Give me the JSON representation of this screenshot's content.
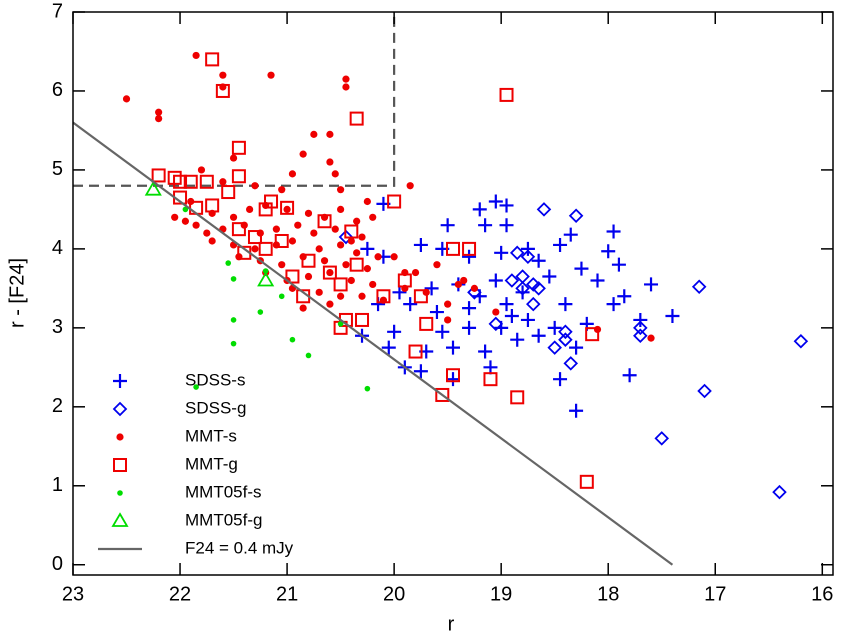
{
  "chart_data": {
    "type": "scatter",
    "xlabel": "r",
    "ylabel": "r - [F24]",
    "xlim": [
      23,
      15.9
    ],
    "ylim": [
      -0.13,
      7
    ],
    "xticks": [
      23,
      22,
      21,
      20,
      19,
      18,
      17,
      16
    ],
    "yticks": [
      0,
      1,
      2,
      3,
      4,
      5,
      6,
      7
    ],
    "legend": "lower left",
    "series": [
      {
        "name": "SDSS-s",
        "color": "#0000ee",
        "marker": "plus",
        "x": [
          20.1,
          19.2,
          19.05,
          18.95,
          19.15,
          19.5,
          18.95,
          18.35,
          17.95,
          18.0,
          18.45,
          18.75,
          19.75,
          19.55,
          19.3,
          19.0,
          18.65,
          18.25,
          17.9,
          17.6,
          17.85,
          17.4,
          17.95,
          18.1,
          18.55,
          19.05,
          19.4,
          19.65,
          19.95,
          20.15,
          19.85,
          19.6,
          19.3,
          18.95,
          18.9,
          18.75,
          18.5,
          18.2,
          17.7,
          18.65,
          19.0,
          19.3,
          19.55,
          20.0,
          20.3,
          20.05,
          19.7,
          19.45,
          19.15,
          18.85,
          19.1,
          19.75,
          19.9,
          19.45,
          18.45,
          17.8,
          18.3,
          20.25,
          20.1,
          18.8,
          19.2,
          18.4,
          18.3
        ],
        "values": [
          4.57,
          4.5,
          4.6,
          4.55,
          4.3,
          4.3,
          4.3,
          4.18,
          4.22,
          3.97,
          4.05,
          4.0,
          4.05,
          4.0,
          3.9,
          3.95,
          3.85,
          3.75,
          3.8,
          3.55,
          3.4,
          3.15,
          3.3,
          3.6,
          3.65,
          3.6,
          3.55,
          3.5,
          3.45,
          3.3,
          3.3,
          3.2,
          3.25,
          3.3,
          3.15,
          3.1,
          3.0,
          3.05,
          3.1,
          2.9,
          3.0,
          3.0,
          2.95,
          2.95,
          2.9,
          2.75,
          2.7,
          2.75,
          2.7,
          2.85,
          2.5,
          2.45,
          2.5,
          2.35,
          2.35,
          2.4,
          1.95,
          4.0,
          3.9,
          3.45,
          3.4,
          3.3,
          2.75
        ]
      },
      {
        "name": "SDSS-g",
        "color": "#0000ee",
        "marker": "diamond",
        "x": [
          18.6,
          18.3,
          17.15,
          16.2,
          17.1,
          17.5,
          16.4,
          17.7,
          17.7,
          18.4,
          18.5,
          18.35,
          18.4,
          18.7,
          18.75,
          18.8,
          18.65,
          18.9,
          18.8,
          19.25,
          19.05,
          20.45,
          18.85,
          18.7
        ],
        "values": [
          4.5,
          4.42,
          3.52,
          2.83,
          2.2,
          1.6,
          0.92,
          3.0,
          2.9,
          2.95,
          2.75,
          2.55,
          2.85,
          3.55,
          3.9,
          3.65,
          3.5,
          3.6,
          3.5,
          3.45,
          3.05,
          4.15,
          3.95,
          3.3
        ]
      },
      {
        "name": "MMT-s",
        "color": "#ee0000",
        "marker": "dot",
        "x": [
          22.5,
          22.2,
          22.2,
          21.85,
          21.6,
          21.6,
          21.15,
          20.45,
          20.45,
          20.6,
          20.75,
          20.85,
          21.5,
          20.6,
          21.8,
          20.55,
          20.95,
          20.5,
          19.85,
          20.25,
          21.05,
          21.6,
          21.3,
          21.9,
          21.7,
          21.5,
          21.35,
          21.2,
          21.0,
          20.8,
          20.65,
          20.5,
          20.35,
          20.2,
          21.85,
          21.6,
          21.4,
          21.25,
          21.1,
          20.9,
          20.75,
          20.55,
          20.4,
          20.3,
          21.7,
          21.5,
          21.3,
          21.1,
          20.95,
          20.7,
          20.5,
          20.35,
          20.15,
          21.45,
          21.25,
          21.05,
          20.85,
          20.65,
          20.45,
          20.25,
          21.2,
          21.0,
          20.8,
          20.6,
          20.4,
          20.2,
          20.95,
          20.7,
          20.5,
          20.3,
          20.1,
          19.9,
          19.7,
          19.5,
          19.35,
          19.8,
          19.6,
          19.4,
          19.25,
          19.05,
          19.5,
          18.1,
          17.6,
          20.0,
          19.9,
          20.6,
          21.75,
          21.95,
          22.05,
          20.85
        ],
        "values": [
          5.9,
          5.73,
          5.65,
          6.45,
          6.2,
          6.05,
          6.2,
          6.15,
          6.05,
          5.45,
          5.45,
          5.2,
          5.15,
          5.1,
          5.0,
          4.95,
          4.95,
          4.75,
          4.8,
          4.6,
          4.75,
          4.85,
          4.8,
          4.6,
          4.45,
          4.4,
          4.5,
          4.55,
          4.5,
          4.45,
          4.4,
          4.5,
          4.35,
          4.4,
          4.3,
          4.25,
          4.3,
          4.2,
          4.25,
          4.3,
          4.2,
          4.25,
          4.1,
          4.15,
          4.1,
          4.05,
          4.0,
          4.05,
          4.1,
          4.0,
          4.05,
          3.95,
          3.9,
          3.9,
          3.85,
          3.8,
          3.9,
          3.85,
          3.8,
          3.75,
          3.7,
          3.6,
          3.65,
          3.7,
          3.6,
          3.55,
          3.5,
          3.45,
          3.4,
          3.4,
          3.35,
          3.5,
          3.45,
          3.3,
          3.6,
          3.7,
          3.8,
          3.55,
          3.5,
          3.2,
          3.1,
          2.98,
          2.87,
          3.9,
          3.7,
          3.3,
          4.2,
          4.35,
          4.4,
          3.25
        ]
      },
      {
        "name": "MMT-g",
        "color": "#ee0000",
        "marker": "square",
        "x": [
          21.7,
          21.6,
          20.35,
          18.95,
          21.45,
          21.45,
          21.55,
          21.75,
          21.9,
          22.2,
          22.05,
          22.0,
          22.0,
          21.85,
          21.7,
          21.15,
          21.2,
          21.0,
          21.45,
          21.3,
          21.05,
          21.2,
          21.4,
          20.65,
          20.4,
          20.35,
          20.8,
          20.6,
          20.95,
          20.5,
          20.85,
          20.45,
          20.3,
          20.1,
          19.75,
          19.7,
          19.8,
          19.45,
          19.55,
          19.1,
          18.85,
          19.45,
          19.3,
          18.15,
          18.2,
          20.5,
          20.0,
          19.9
        ],
        "values": [
          6.4,
          6.0,
          5.65,
          5.95,
          5.28,
          4.92,
          4.72,
          4.85,
          4.85,
          4.93,
          4.9,
          4.85,
          4.65,
          4.52,
          4.55,
          4.6,
          4.5,
          4.52,
          4.25,
          4.15,
          4.1,
          4.0,
          3.95,
          4.35,
          4.22,
          3.8,
          3.85,
          3.7,
          3.65,
          3.55,
          3.4,
          3.1,
          3.1,
          3.4,
          3.4,
          3.05,
          2.7,
          2.4,
          2.15,
          2.35,
          2.12,
          4.0,
          4.0,
          2.92,
          1.05,
          3.0,
          4.6,
          3.6
        ]
      },
      {
        "name": "MMT05f-s",
        "color": "#00dd00",
        "marker": "smalldot",
        "x": [
          21.95,
          21.55,
          21.5,
          21.2,
          21.05,
          21.85,
          21.5,
          21.5,
          21.25,
          20.95,
          20.8,
          20.5,
          20.25
        ],
        "values": [
          4.5,
          3.82,
          3.62,
          3.72,
          3.4,
          2.25,
          3.1,
          2.8,
          3.2,
          2.85,
          2.65,
          3.05,
          2.23
        ]
      },
      {
        "name": "MMT05f-g",
        "color": "#00dd00",
        "marker": "triangle",
        "x": [
          22.25,
          21.2
        ],
        "values": [
          4.75,
          3.6
        ]
      },
      {
        "name": "F24 = 0.4 mJy",
        "color": "#666666",
        "marker": "line",
        "x": [
          23,
          17.4
        ],
        "values": [
          5.6,
          0
        ]
      }
    ],
    "reference_lines": [
      {
        "color": "#555555",
        "dashed": true,
        "x": [
          23,
          20,
          20
        ],
        "values": [
          4.8,
          4.8,
          7
        ]
      }
    ]
  }
}
